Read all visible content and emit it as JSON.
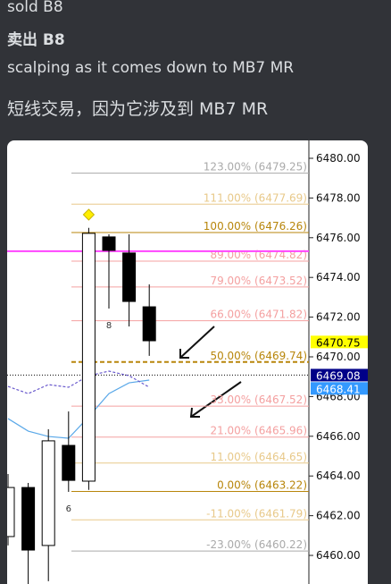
{
  "messages": [
    "sold B8",
    "卖出 B8",
    "scalping as it comes down to MB7 MR",
    "短线交易，因为它涉及到 MB7 MR"
  ],
  "chart_image": {
    "ylim": [
      6458.56,
      6480.9
    ],
    "yticks": [
      {
        "value": 6480,
        "label": "6480.00"
      },
      {
        "value": 6478,
        "label": "6478.00"
      },
      {
        "value": 6476,
        "label": "6476.00"
      },
      {
        "value": 6474,
        "label": "6474.00"
      },
      {
        "value": 6472,
        "label": "6472.00"
      },
      {
        "value": 6470,
        "label": "6470.00"
      },
      {
        "value": 6468,
        "label": "6468.00"
      },
      {
        "value": 6466,
        "label": "6466.00"
      },
      {
        "value": 6464,
        "label": "6464.00"
      },
      {
        "value": 6462,
        "label": "6462.00"
      },
      {
        "value": 6460,
        "label": "6460.00"
      }
    ],
    "fib_levels": [
      {
        "label": "123.00% (6479.25)",
        "value": 6479.25,
        "color": "#aaaaaa"
      },
      {
        "label": "111.00% (6477.69)",
        "value": 6477.69,
        "color": "#e8c98a"
      },
      {
        "label": "100.00% (6476.26)",
        "value": 6476.26,
        "color": "#b8860b"
      },
      {
        "label": "89.00% (6474.82)",
        "value": 6474.82,
        "color": "#f4a0a0"
      },
      {
        "label": "79.00% (6473.52)",
        "value": 6473.52,
        "color": "#f4a0a0"
      },
      {
        "label": "66.00% (6471.82)",
        "value": 6471.82,
        "color": "#f4a0a0"
      },
      {
        "label": "50.00% (6469.74)",
        "value": 6469.74,
        "color": "#b8860b",
        "dashed": true
      },
      {
        "label": "33.00% (6467.52)",
        "value": 6467.52,
        "color": "#f4a0a0"
      },
      {
        "label": "21.00% (6465.96)",
        "value": 6465.96,
        "color": "#f4a0a0"
      },
      {
        "label": "11.00% (6464.65)",
        "value": 6464.65,
        "color": "#e8c98a"
      },
      {
        "label": "0.00% (6463.22)",
        "value": 6463.22,
        "color": "#b8860b"
      },
      {
        "label": "-11.00% (6461.79)",
        "value": 6461.79,
        "color": "#e8c98a"
      },
      {
        "label": "-23.00% (6460.22)",
        "value": 6460.22,
        "color": "#aaaaaa"
      }
    ],
    "price_tags": [
      {
        "label": "6470.75",
        "value": 6470.75,
        "color": "#ffff00",
        "text_color": "#000000"
      },
      {
        "label": "6469.08",
        "value": 6469.08,
        "color": "#000088",
        "text_color": "#ffffff"
      },
      {
        "label": "6468.41",
        "value": 6468.41,
        "color": "#3399ff",
        "text_color": "#ffffff"
      }
    ],
    "magenta_line": {
      "value": 6475.32,
      "color": "#ff44ff"
    },
    "dotted_line": {
      "value": 6469.08,
      "color": "#000000"
    },
    "candles": [
      {
        "open": 6460.95,
        "high": 6464.1,
        "low": 6460.5,
        "close": 6463.42
      },
      {
        "open": 6463.42,
        "high": 6463.65,
        "low": 6458.5,
        "close": 6460.27
      },
      {
        "open": 6460.5,
        "high": 6466.35,
        "low": 6458.7,
        "close": 6465.77
      },
      {
        "open": 6465.54,
        "high": 6467.25,
        "low": 6463.2,
        "close": 6463.78,
        "label": "6"
      },
      {
        "open": 6463.74,
        "high": 6476.5,
        "low": 6463.3,
        "close": 6476.22,
        "marker": 6477.16
      },
      {
        "open": 6476.04,
        "high": 6476.17,
        "low": 6472.43,
        "close": 6475.36,
        "label": "8"
      },
      {
        "open": 6475.23,
        "high": 6476.17,
        "low": 6471.53,
        "close": 6472.79
      },
      {
        "open": 6472.52,
        "high": 6473.65,
        "low": 6470.05,
        "close": 6470.81
      }
    ],
    "moving_averages": [
      {
        "color": "#5aa8e8",
        "values": [
          6466.89,
          6466.26,
          6465.99,
          6465.9,
          6466.98,
          6468.15,
          6468.69,
          6468.83
        ]
      },
      {
        "color": "#6a5acd",
        "dashed": true,
        "values": [
          6468.51,
          6468.15,
          6468.6,
          6468.47,
          6469.05,
          6469.28,
          6469.05,
          6468.47
        ]
      }
    ]
  }
}
